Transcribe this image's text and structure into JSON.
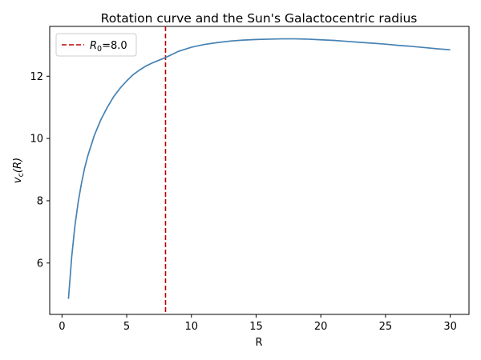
{
  "chart_data": {
    "type": "line",
    "title": "Rotation curve and the Sun's Galactocentric radius",
    "xlabel": "R",
    "ylabel_main": "v",
    "ylabel_sub": "c",
    "ylabel_tail": "(R)",
    "xlim": [
      -0.95,
      31.45
    ],
    "ylim": [
      4.35,
      13.6
    ],
    "xticks": [
      0,
      5,
      10,
      15,
      20,
      25,
      30
    ],
    "yticks": [
      6,
      8,
      10,
      12
    ],
    "grid": false,
    "legend_position": "top-left",
    "series": [
      {
        "kind": "curve",
        "color": "#4682b4",
        "x": [
          0.5,
          0.75,
          1.0,
          1.25,
          1.5,
          1.75,
          2.0,
          2.5,
          3.0,
          3.5,
          4.0,
          4.5,
          5.0,
          5.5,
          6.0,
          6.5,
          7.0,
          8.0,
          9.0,
          10.0,
          11.0,
          12.0,
          13.0,
          14.0,
          15.0,
          16.0,
          17.0,
          18.0,
          19.0,
          20.0,
          21.0,
          22.0,
          23.0,
          24.0,
          25.0,
          26.0,
          27.0,
          28.0,
          29.0,
          30.0
        ],
        "y": [
          4.85,
          6.2,
          7.2,
          7.95,
          8.55,
          9.05,
          9.45,
          10.1,
          10.6,
          11.0,
          11.35,
          11.62,
          11.85,
          12.05,
          12.2,
          12.33,
          12.43,
          12.6,
          12.8,
          12.93,
          13.02,
          13.08,
          13.13,
          13.16,
          13.18,
          13.19,
          13.2,
          13.2,
          13.19,
          13.17,
          13.15,
          13.12,
          13.09,
          13.06,
          13.03,
          12.99,
          12.96,
          12.92,
          12.88,
          12.85
        ]
      },
      {
        "kind": "vline",
        "name_main": "R",
        "name_sub": "0",
        "name_tail": "=8.0",
        "color": "#c00000",
        "x": 8.0
      }
    ]
  }
}
